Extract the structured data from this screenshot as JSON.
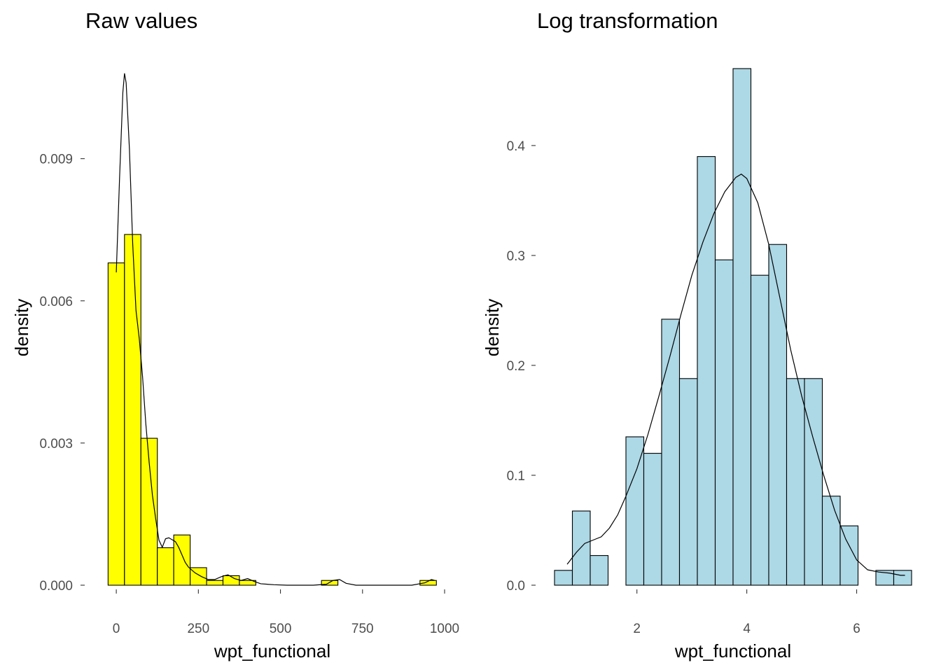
{
  "chart_data": [
    {
      "type": "histogram",
      "title": "Raw values",
      "xlabel": "wpt_functional",
      "ylabel": "density",
      "fill": "#ffff00",
      "xlim": [
        -45,
        1000
      ],
      "ylim": [
        0,
        0.0109
      ],
      "xticks": [
        0,
        250,
        500,
        750,
        1000
      ],
      "xtick_labels": [
        "0",
        "250",
        "500",
        "750",
        "1000"
      ],
      "yticks": [
        0,
        0.003,
        0.006,
        0.009
      ],
      "ytick_labels": [
        "0.000",
        "0.003",
        "0.006",
        "0.009"
      ],
      "binwidth": 50,
      "bins": [
        {
          "x": 0,
          "value": 0.0068
        },
        {
          "x": 50,
          "value": 0.0074
        },
        {
          "x": 100,
          "value": 0.0031
        },
        {
          "x": 150,
          "value": 0.00079
        },
        {
          "x": 200,
          "value": 0.00106
        },
        {
          "x": 250,
          "value": 0.00037
        },
        {
          "x": 300,
          "value": 0.0001
        },
        {
          "x": 350,
          "value": 0.0002
        },
        {
          "x": 400,
          "value": 0.0001
        },
        {
          "x": 650,
          "value": 0.0001
        },
        {
          "x": 950,
          "value": 0.0001
        }
      ],
      "density_curve": [
        [
          0,
          0.0066
        ],
        [
          10,
          0.0086
        ],
        [
          20,
          0.0104
        ],
        [
          25,
          0.0108
        ],
        [
          30,
          0.0106
        ],
        [
          40,
          0.0092
        ],
        [
          50,
          0.0072
        ],
        [
          60,
          0.0058
        ],
        [
          70,
          0.0052
        ],
        [
          80,
          0.0044
        ],
        [
          90,
          0.0034
        ],
        [
          100,
          0.0026
        ],
        [
          110,
          0.0019
        ],
        [
          120,
          0.0014
        ],
        [
          130,
          0.00095
        ],
        [
          140,
          0.0008
        ],
        [
          150,
          0.00098
        ],
        [
          160,
          0.001
        ],
        [
          170,
          0.00096
        ],
        [
          180,
          0.00092
        ],
        [
          190,
          0.0008
        ],
        [
          200,
          0.00064
        ],
        [
          210,
          0.00048
        ],
        [
          220,
          0.00038
        ],
        [
          240,
          0.00026
        ],
        [
          260,
          0.00018
        ],
        [
          280,
          0.00012
        ],
        [
          300,
          0.00012
        ],
        [
          320,
          0.00018
        ],
        [
          340,
          0.00022
        ],
        [
          360,
          0.00014
        ],
        [
          380,
          0.0001
        ],
        [
          400,
          0.00014
        ],
        [
          420,
          8e-05
        ],
        [
          440,
          3e-05
        ],
        [
          480,
          1e-05
        ],
        [
          520,
          0.0
        ],
        [
          600,
          0.0
        ],
        [
          640,
          2e-05
        ],
        [
          660,
          0.0001
        ],
        [
          680,
          0.00012
        ],
        [
          700,
          4e-05
        ],
        [
          730,
          0.0
        ],
        [
          900,
          0.0
        ],
        [
          940,
          5e-05
        ],
        [
          960,
          0.00012
        ],
        [
          970,
          0.0001
        ]
      ]
    },
    {
      "type": "histogram",
      "title": "Log transformation",
      "xlabel": "wpt_functional",
      "ylabel": "density",
      "fill": "#add8e6",
      "xlim": [
        0.5,
        7.0
      ],
      "ylim": [
        0,
        0.47
      ],
      "xticks": [
        2,
        4,
        6
      ],
      "xtick_labels": [
        "2",
        "4",
        "6"
      ],
      "yticks": [
        0.0,
        0.1,
        0.2,
        0.3,
        0.4
      ],
      "ytick_labels": [
        "0.0",
        "0.1",
        "0.2",
        "0.3",
        "0.4"
      ],
      "binwidth": 0.325,
      "bins": [
        {
          "x": 0.6625,
          "value": 0.0135
        },
        {
          "x": 0.9875,
          "value": 0.0675
        },
        {
          "x": 1.3125,
          "value": 0.027
        },
        {
          "x": 1.6375,
          "value": 0.0
        },
        {
          "x": 1.9625,
          "value": 0.135
        },
        {
          "x": 2.2875,
          "value": 0.12
        },
        {
          "x": 2.6125,
          "value": 0.242
        },
        {
          "x": 2.9375,
          "value": 0.188
        },
        {
          "x": 3.2625,
          "value": 0.39
        },
        {
          "x": 3.5875,
          "value": 0.296
        },
        {
          "x": 3.9125,
          "value": 0.47
        },
        {
          "x": 4.2375,
          "value": 0.282
        },
        {
          "x": 4.5625,
          "value": 0.31
        },
        {
          "x": 4.8875,
          "value": 0.188
        },
        {
          "x": 5.2125,
          "value": 0.188
        },
        {
          "x": 5.5375,
          "value": 0.081
        },
        {
          "x": 5.8625,
          "value": 0.054
        },
        {
          "x": 6.1875,
          "value": 0.0
        },
        {
          "x": 6.5125,
          "value": 0.0135
        },
        {
          "x": 6.8375,
          "value": 0.0135
        }
      ],
      "density_curve": [
        [
          0.73,
          0.019
        ],
        [
          0.9,
          0.03
        ],
        [
          1.05,
          0.038
        ],
        [
          1.2,
          0.041
        ],
        [
          1.35,
          0.044
        ],
        [
          1.5,
          0.052
        ],
        [
          1.65,
          0.064
        ],
        [
          1.8,
          0.081
        ],
        [
          2.0,
          0.106
        ],
        [
          2.2,
          0.137
        ],
        [
          2.4,
          0.172
        ],
        [
          2.6,
          0.208
        ],
        [
          2.8,
          0.246
        ],
        [
          3.0,
          0.282
        ],
        [
          3.2,
          0.312
        ],
        [
          3.4,
          0.338
        ],
        [
          3.6,
          0.358
        ],
        [
          3.8,
          0.371
        ],
        [
          3.9,
          0.374
        ],
        [
          4.0,
          0.37
        ],
        [
          4.2,
          0.348
        ],
        [
          4.4,
          0.31
        ],
        [
          4.6,
          0.262
        ],
        [
          4.8,
          0.214
        ],
        [
          5.0,
          0.172
        ],
        [
          5.2,
          0.135
        ],
        [
          5.4,
          0.1
        ],
        [
          5.6,
          0.068
        ],
        [
          5.8,
          0.042
        ],
        [
          6.0,
          0.023
        ],
        [
          6.2,
          0.014
        ],
        [
          6.4,
          0.012
        ],
        [
          6.6,
          0.011
        ],
        [
          6.8,
          0.009
        ],
        [
          6.88,
          0.009
        ]
      ]
    }
  ]
}
